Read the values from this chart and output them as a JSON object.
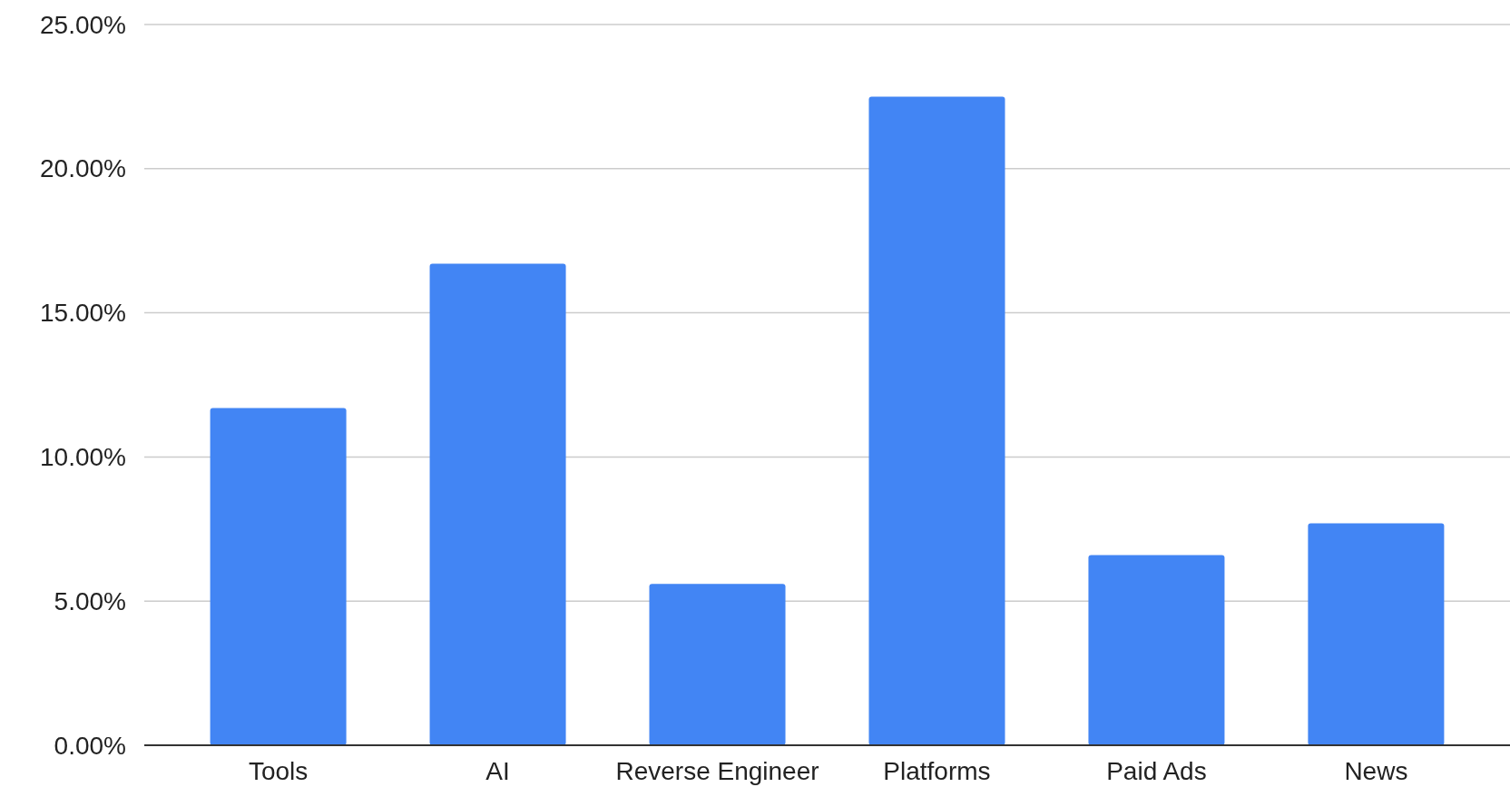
{
  "chart_data": {
    "type": "bar",
    "categories": [
      "Tools",
      "AI",
      "Reverse Engineer",
      "Platforms",
      "Paid Ads",
      "News"
    ],
    "values": [
      11.7,
      16.7,
      5.6,
      22.5,
      6.6,
      7.7
    ],
    "color": "#4285f4",
    "ylim": [
      0,
      25
    ],
    "yticks": [
      {
        "value": 0,
        "label": "0.00%"
      },
      {
        "value": 5,
        "label": "5.00%"
      },
      {
        "value": 10,
        "label": "10.00%"
      },
      {
        "value": 15,
        "label": "15.00%"
      },
      {
        "value": 20,
        "label": "20.00%"
      },
      {
        "value": 25,
        "label": "25.00%"
      }
    ],
    "grid": "y"
  }
}
